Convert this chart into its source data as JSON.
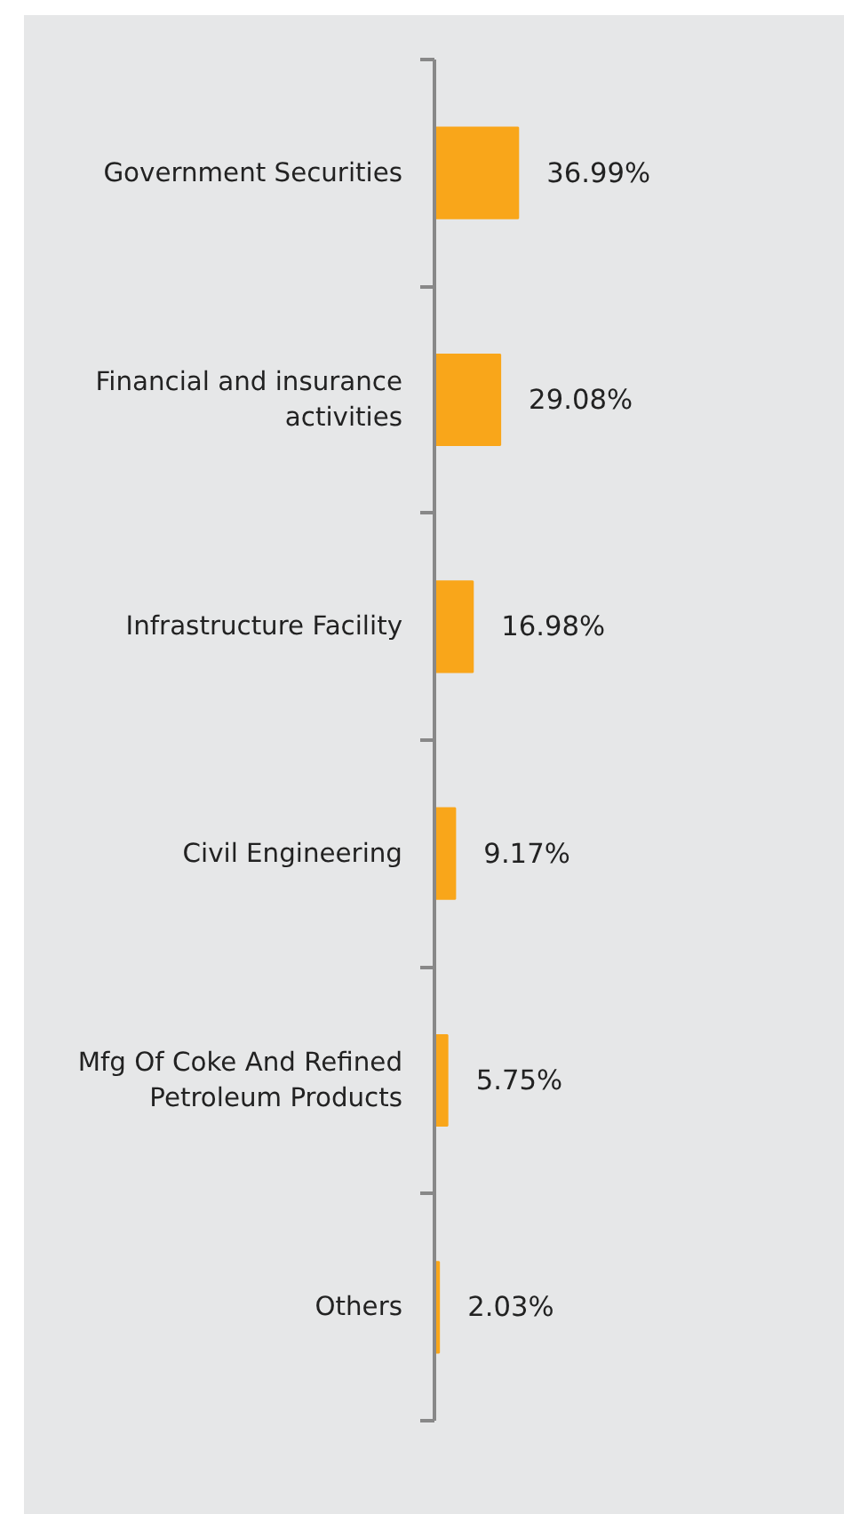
{
  "chart_data": {
    "type": "bar",
    "orientation": "horizontal",
    "categories": [
      "Government Securities",
      "Financial and insurance\nactivities",
      "Infrastructure Facility",
      "Civil Engineering",
      "Mfg Of Coke And Refined\nPetroleum Products",
      "Others"
    ],
    "values": [
      36.99,
      29.08,
      16.98,
      9.17,
      5.75,
      2.03
    ],
    "value_labels": [
      "36.99%",
      "29.08%",
      "16.98%",
      "9.17%",
      "5.75%",
      "2.03%"
    ],
    "color": "#f9a61a"
  }
}
